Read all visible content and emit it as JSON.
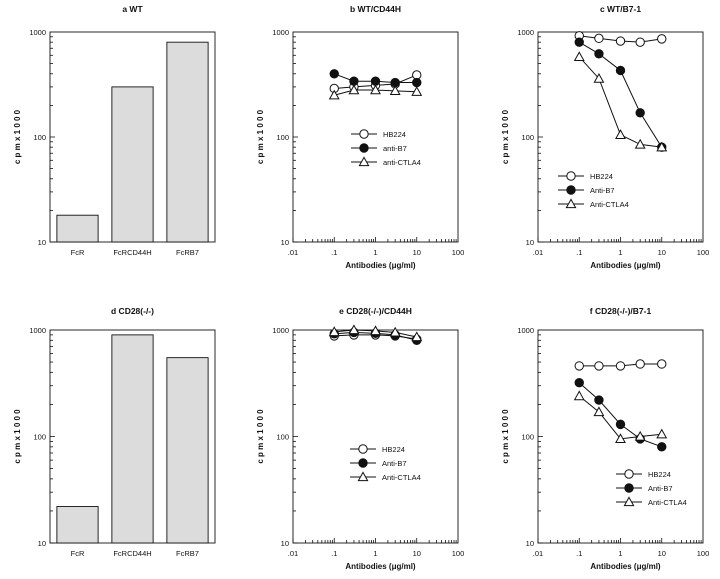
{
  "chart_data": [
    {
      "type": "bar",
      "panel": "a",
      "title": "a   WT",
      "categories": [
        "FcR",
        "FcRCD44H",
        "FcRB7"
      ],
      "values": [
        18,
        300,
        800
      ],
      "ylabel": "c p m x 1 0 0 0",
      "yscale": "log",
      "ylim": [
        10,
        1000
      ],
      "yticks": [
        "10",
        "100",
        "1000"
      ]
    },
    {
      "type": "line",
      "panel": "b",
      "title": "b   WT/CD44H",
      "x": [
        0.1,
        0.3,
        1,
        3,
        10
      ],
      "series": [
        {
          "name": "HB224",
          "marker": "open-circle",
          "values": [
            290,
            300,
            310,
            320,
            390
          ]
        },
        {
          "name": "anti-B7",
          "marker": "filled-circle",
          "values": [
            400,
            340,
            340,
            330,
            330
          ]
        },
        {
          "name": "anti-CTLA4",
          "marker": "open-triangle",
          "values": [
            250,
            280,
            280,
            275,
            270
          ]
        }
      ],
      "xlabel": "Antibodies   (μg/ml)",
      "ylabel": "c p m x 1 0 0 0",
      "xscale": "log",
      "yscale": "log",
      "xlim": [
        0.01,
        100
      ],
      "ylim": [
        10,
        1000
      ],
      "xticks": [
        ".01",
        ".1",
        "1",
        "10",
        "100"
      ],
      "yticks": [
        "10",
        "100",
        "1000"
      ],
      "legend_position": "center"
    },
    {
      "type": "line",
      "panel": "c",
      "title": "c   WT/B7-1",
      "x": [
        0.1,
        0.3,
        1,
        3,
        10
      ],
      "series": [
        {
          "name": "HB224",
          "marker": "open-circle",
          "values": [
            920,
            870,
            820,
            800,
            860
          ]
        },
        {
          "name": "Anti-B7",
          "marker": "filled-circle",
          "values": [
            800,
            620,
            430,
            170,
            80
          ]
        },
        {
          "name": "Anti-CTLA4",
          "marker": "open-triangle",
          "values": [
            580,
            360,
            105,
            85,
            80
          ]
        }
      ],
      "xlabel": "Antibodies   (μg/ml)",
      "ylabel": "c p m x 1 0 0 0",
      "xscale": "log",
      "yscale": "log",
      "xlim": [
        0.01,
        100
      ],
      "ylim": [
        10,
        1000
      ],
      "xticks": [
        ".01",
        ".1",
        "1",
        "10",
        "100"
      ],
      "yticks": [
        "10",
        "100",
        "1000"
      ],
      "legend_position": "bottom-left"
    },
    {
      "type": "bar",
      "panel": "d",
      "title": "d   CD28(-/-)",
      "categories": [
        "FcR",
        "FcRCD44H",
        "FcRB7"
      ],
      "values": [
        22,
        900,
        550
      ],
      "ylabel": "c p m x 1 0 0 0",
      "yscale": "log",
      "ylim": [
        10,
        1000
      ],
      "yticks": [
        "10",
        "100",
        "1000"
      ]
    },
    {
      "type": "line",
      "panel": "e",
      "title": "e   CD28(-/-)/CD44H",
      "x": [
        0.1,
        0.3,
        1,
        3,
        10
      ],
      "series": [
        {
          "name": "HB224",
          "marker": "open-circle",
          "values": [
            880,
            900,
            900,
            880,
            820
          ]
        },
        {
          "name": "Anti-B7",
          "marker": "filled-circle",
          "values": [
            920,
            950,
            930,
            900,
            800
          ]
        },
        {
          "name": "Anti-CTLA4",
          "marker": "open-triangle",
          "values": [
            960,
            1000,
            980,
            950,
            860
          ]
        }
      ],
      "xlabel": "Antibodies   (μg/ml)",
      "ylabel": "c p m x 1 0 0 0",
      "xscale": "log",
      "yscale": "log",
      "xlim": [
        0.01,
        100
      ],
      "ylim": [
        10,
        1000
      ],
      "xticks": [
        ".01",
        ".1",
        "1",
        "10",
        "100"
      ],
      "yticks": [
        "10",
        "100",
        "1000"
      ],
      "legend_position": "center"
    },
    {
      "type": "line",
      "panel": "f",
      "title": "f   CD28(-/-)/B7-1",
      "x": [
        0.1,
        0.3,
        1,
        3,
        10
      ],
      "series": [
        {
          "name": "HB224",
          "marker": "open-circle",
          "values": [
            460,
            460,
            460,
            480,
            480
          ]
        },
        {
          "name": "Anti-B7",
          "marker": "filled-circle",
          "values": [
            320,
            220,
            130,
            95,
            80
          ]
        },
        {
          "name": "Anti-CTLA4",
          "marker": "open-triangle",
          "values": [
            240,
            170,
            95,
            100,
            105
          ]
        }
      ],
      "xlabel": "Antibodies   (μg/ml)",
      "ylabel": "c p m x 1 0 0 0",
      "xscale": "log",
      "yscale": "log",
      "xlim": [
        0.01,
        100
      ],
      "ylim": [
        10,
        1000
      ],
      "xticks": [
        ".01",
        ".1",
        "1",
        "10",
        "100"
      ],
      "yticks": [
        "10",
        "100",
        "1000"
      ],
      "legend_position": "bottom-left"
    }
  ]
}
